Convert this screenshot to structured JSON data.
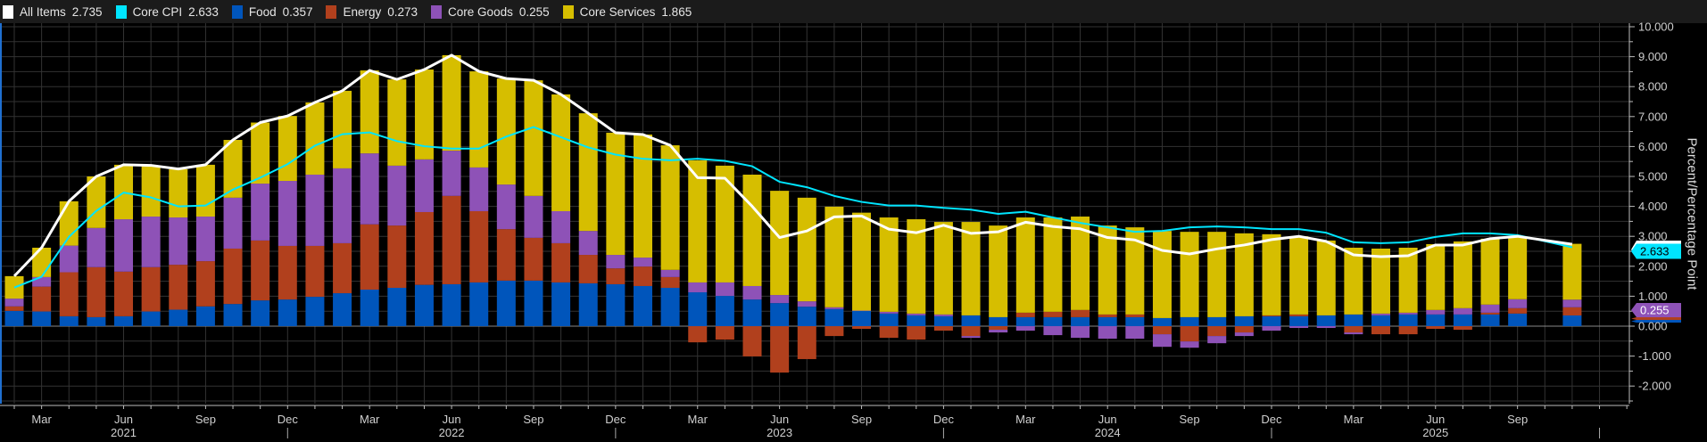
{
  "chart_data": {
    "type": "bar",
    "stacked": true,
    "ylabel": "Percent/Percentage Point",
    "ylim": [
      -2.5,
      10
    ],
    "y_ticks": [
      -2,
      -1,
      0,
      1,
      2,
      3,
      4,
      5,
      6,
      7,
      8,
      9,
      10
    ],
    "grid": true,
    "legend_position": "top",
    "x": [
      "2021-02",
      "2021-03",
      "2021-04",
      "2021-05",
      "2021-06",
      "2021-07",
      "2021-08",
      "2021-09",
      "2021-10",
      "2021-11",
      "2021-12",
      "2022-01",
      "2022-02",
      "2022-03",
      "2022-04",
      "2022-05",
      "2022-06",
      "2022-07",
      "2022-08",
      "2022-09",
      "2022-10",
      "2022-11",
      "2022-12",
      "2023-01",
      "2023-02",
      "2023-03",
      "2023-04",
      "2023-05",
      "2023-06",
      "2023-07",
      "2023-08",
      "2023-09",
      "2023-10",
      "2023-11",
      "2023-12",
      "2024-01",
      "2024-02",
      "2024-03",
      "2024-04",
      "2024-05",
      "2024-06",
      "2024-07",
      "2024-08",
      "2024-09",
      "2024-10",
      "2024-11",
      "2024-12",
      "2025-01",
      "2025-02",
      "2025-03",
      "2025-04",
      "2025-05",
      "2025-06",
      "2025-07",
      "2025-08",
      "2025-09",
      "2025-10",
      "2025-11"
    ],
    "x_tick_labels": [
      {
        "label": "Mar",
        "month": "2021-03"
      },
      {
        "label": "Jun",
        "month": "2021-06"
      },
      {
        "label": "Sep",
        "month": "2021-09"
      },
      {
        "label": "Dec",
        "month": "2021-12"
      },
      {
        "label": "Mar",
        "month": "2022-03"
      },
      {
        "label": "Jun",
        "month": "2022-06"
      },
      {
        "label": "Sep",
        "month": "2022-09"
      },
      {
        "label": "Dec",
        "month": "2022-12"
      },
      {
        "label": "Mar",
        "month": "2023-03"
      },
      {
        "label": "Jun",
        "month": "2023-06"
      },
      {
        "label": "Sep",
        "month": "2023-09"
      },
      {
        "label": "Dec",
        "month": "2023-12"
      },
      {
        "label": "Mar",
        "month": "2024-03"
      },
      {
        "label": "Jun",
        "month": "2024-06"
      },
      {
        "label": "Sep",
        "month": "2024-09"
      },
      {
        "label": "Dec",
        "month": "2024-12"
      },
      {
        "label": "Mar",
        "month": "2025-03"
      },
      {
        "label": "Jun",
        "month": "2025-06"
      },
      {
        "label": "Sep",
        "month": "2025-09"
      }
    ],
    "year_labels": [
      {
        "label": "2021",
        "month": "2021-06"
      },
      {
        "label": "2022",
        "month": "2022-06"
      },
      {
        "label": "2023",
        "month": "2023-06"
      },
      {
        "label": "2024",
        "month": "2024-06"
      },
      {
        "label": "2025",
        "month": "2025-06"
      }
    ],
    "bar_series": [
      {
        "name": "Food",
        "legend_value": "0.357",
        "color": "#0055bb",
        "values": [
          0.51,
          0.49,
          0.33,
          0.3,
          0.33,
          0.49,
          0.55,
          0.66,
          0.74,
          0.86,
          0.89,
          0.98,
          1.1,
          1.22,
          1.28,
          1.38,
          1.4,
          1.46,
          1.52,
          1.52,
          1.46,
          1.43,
          1.4,
          1.34,
          1.28,
          1.13,
          1.01,
          0.89,
          0.77,
          0.65,
          0.57,
          0.51,
          0.42,
          0.36,
          0.33,
          0.36,
          0.3,
          0.3,
          0.3,
          0.3,
          0.3,
          0.3,
          0.27,
          0.3,
          0.3,
          0.33,
          0.33,
          0.33,
          0.36,
          0.39,
          0.36,
          0.39,
          0.39,
          0.39,
          0.39,
          0.42,
          null,
          0.357
        ]
      },
      {
        "name": "Energy",
        "legend_value": "0.273",
        "color": "#b1401d",
        "values": [
          0.15,
          0.83,
          1.47,
          1.67,
          1.49,
          1.48,
          1.5,
          1.51,
          1.85,
          2.0,
          1.79,
          1.7,
          1.67,
          2.18,
          2.08,
          2.43,
          2.95,
          2.38,
          1.72,
          1.43,
          1.31,
          0.95,
          0.53,
          0.65,
          0.36,
          -0.54,
          -0.45,
          -1.01,
          -1.55,
          -1.1,
          -0.33,
          -0.09,
          -0.39,
          -0.45,
          -0.15,
          -0.33,
          -0.12,
          0.15,
          0.18,
          0.24,
          0.09,
          0.09,
          -0.27,
          -0.51,
          -0.33,
          -0.21,
          0.03,
          0.06,
          0.0,
          -0.21,
          -0.27,
          -0.27,
          -0.09,
          -0.12,
          0.06,
          0.18,
          null,
          0.273
        ]
      },
      {
        "name": "Core Goods",
        "legend_value": "0.255",
        "color": "#8e52b7",
        "values": [
          0.26,
          0.32,
          0.89,
          1.31,
          1.75,
          1.69,
          1.58,
          1.49,
          1.7,
          1.9,
          2.17,
          2.38,
          2.5,
          2.37,
          2.0,
          1.76,
          1.51,
          1.46,
          1.49,
          1.4,
          1.07,
          0.8,
          0.45,
          0.3,
          0.24,
          0.33,
          0.45,
          0.45,
          0.27,
          0.18,
          0.06,
          0.01,
          0.06,
          0.06,
          0.06,
          -0.06,
          -0.09,
          -0.15,
          -0.3,
          -0.39,
          -0.42,
          -0.42,
          -0.42,
          -0.21,
          -0.24,
          -0.12,
          -0.15,
          -0.06,
          -0.06,
          -0.06,
          0.06,
          0.06,
          0.15,
          0.21,
          0.27,
          0.3,
          null,
          0.255
        ]
      },
      {
        "name": "Core Services",
        "legend_value": "1.865",
        "color": "#d6be00",
        "values": [
          0.75,
          0.98,
          1.48,
          1.72,
          1.82,
          1.68,
          1.61,
          1.73,
          1.93,
          2.04,
          2.17,
          2.41,
          2.59,
          2.77,
          2.88,
          3.0,
          3.19,
          3.21,
          3.54,
          3.86,
          3.9,
          3.93,
          4.08,
          4.11,
          4.16,
          4.08,
          3.9,
          3.72,
          3.48,
          3.46,
          3.36,
          3.27,
          3.15,
          3.15,
          3.09,
          3.12,
          3.06,
          3.18,
          3.15,
          3.12,
          2.97,
          2.91,
          2.91,
          2.85,
          2.85,
          2.77,
          2.71,
          2.61,
          2.5,
          2.23,
          2.17,
          2.17,
          2.2,
          2.23,
          2.2,
          2.1,
          null,
          1.865
        ]
      }
    ],
    "line_series": [
      {
        "name": "All Items",
        "legend_value": "2.735",
        "color": "#ffffff",
        "values": [
          1.67,
          2.62,
          4.17,
          5.0,
          5.39,
          5.37,
          5.25,
          5.39,
          6.22,
          6.8,
          7.02,
          7.47,
          7.86,
          8.54,
          8.24,
          8.57,
          9.05,
          8.51,
          8.27,
          8.21,
          7.74,
          7.11,
          6.46,
          6.4,
          6.04,
          4.96,
          4.94,
          4.0,
          2.96,
          3.18,
          3.65,
          3.68,
          3.24,
          3.12,
          3.37,
          3.1,
          3.15,
          3.47,
          3.33,
          3.25,
          2.96,
          2.88,
          2.53,
          2.41,
          2.58,
          2.71,
          2.89,
          3.0,
          2.83,
          2.38,
          2.32,
          2.35,
          2.71,
          2.71,
          2.92,
          3.0,
          null,
          2.735
        ]
      },
      {
        "name": "Core CPI",
        "legend_value": "2.633",
        "color": "#00e5ff",
        "values": [
          1.29,
          1.65,
          2.98,
          3.85,
          4.46,
          4.3,
          4.0,
          4.03,
          4.56,
          4.96,
          5.41,
          6.03,
          6.41,
          6.47,
          6.18,
          6.01,
          5.93,
          5.93,
          6.33,
          6.65,
          6.31,
          5.97,
          5.73,
          5.59,
          5.54,
          5.59,
          5.52,
          5.34,
          4.82,
          4.64,
          4.35,
          4.15,
          4.03,
          4.03,
          3.95,
          3.89,
          3.75,
          3.82,
          3.63,
          3.45,
          3.3,
          3.15,
          3.18,
          3.3,
          3.33,
          3.3,
          3.24,
          3.24,
          3.12,
          2.8,
          2.77,
          2.8,
          2.98,
          3.1,
          3.1,
          3.04,
          null,
          2.633
        ]
      }
    ],
    "last_value_tags": [
      {
        "series": "All Items",
        "label": "2.735",
        "color": "#ffffff",
        "text_color": "#000000"
      },
      {
        "series": "Core CPI",
        "label": "2.633",
        "color": "#00e5ff",
        "text_color": "#000000"
      },
      {
        "series": "Food",
        "label": "0.357",
        "color": "#0055bb",
        "text_color": "#ffffff"
      },
      {
        "series": "Energy",
        "label": "0.273",
        "color": "#b1401d",
        "text_color": "#ffffff"
      },
      {
        "series": "Core Goods",
        "label": "0.255",
        "color": "#8e52b7",
        "text_color": "#ffffff"
      }
    ]
  },
  "legend": [
    {
      "name": "All Items",
      "value": "2.735",
      "color": "#ffffff"
    },
    {
      "name": "Core CPI",
      "value": "2.633",
      "color": "#00e5ff"
    },
    {
      "name": "Food",
      "value": "0.357",
      "color": "#0055bb"
    },
    {
      "name": "Energy",
      "value": "0.273",
      "color": "#b1401d"
    },
    {
      "name": "Core Goods",
      "value": "0.255",
      "color": "#8e52b7"
    },
    {
      "name": "Core Services",
      "value": "1.865",
      "color": "#d6be00"
    }
  ]
}
